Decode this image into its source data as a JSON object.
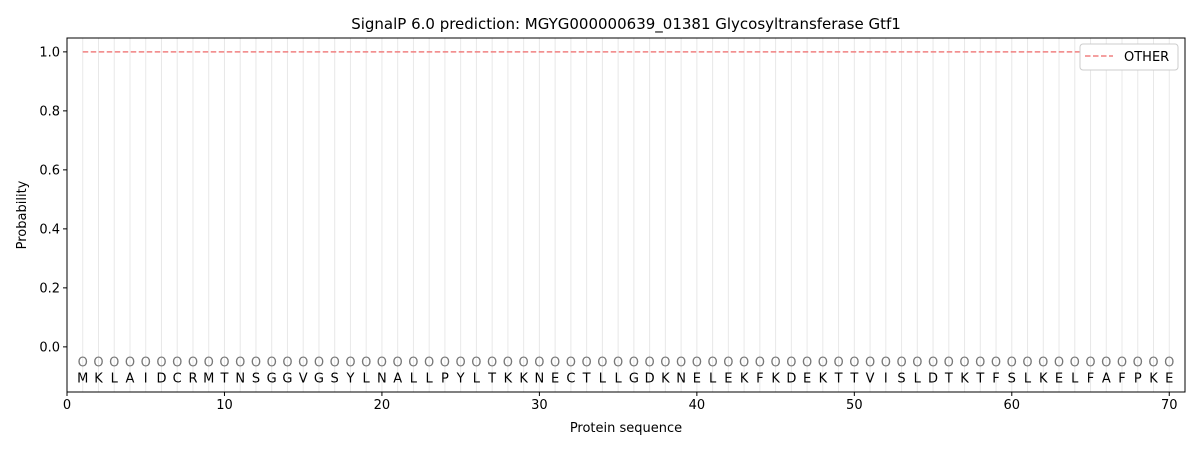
{
  "chart_data": {
    "type": "line",
    "title": "SignalP 6.0 prediction: MGYG000000639_01381 Glycosyltransferase Gtf1",
    "xlabel": "Protein sequence",
    "ylabel": "Probability",
    "xlim": [
      0,
      71
    ],
    "ylim": [
      -0.153,
      1.047
    ],
    "xticks": [
      0,
      10,
      20,
      30,
      40,
      50,
      60,
      70
    ],
    "yticks": [
      0.0,
      0.2,
      0.4,
      0.6,
      0.8,
      1.0
    ],
    "ytick_labels": [
      "0.0",
      "0.2",
      "0.4",
      "0.6",
      "0.8",
      "1.0"
    ],
    "legend_position": "top-right",
    "series": [
      {
        "name": "OTHER",
        "color": "#f08080",
        "style": "dashed",
        "x_start": 1,
        "x_end": 70,
        "value": 1.0
      }
    ],
    "sequence": "MKLAIDCRMTNSGGVGSYLNALLPYLTKKNECTLLGDKNELEKFKDEKTTVISLDTKTFSLKELFAFPKE",
    "region_label": "O",
    "grid": "vertical per residue"
  }
}
